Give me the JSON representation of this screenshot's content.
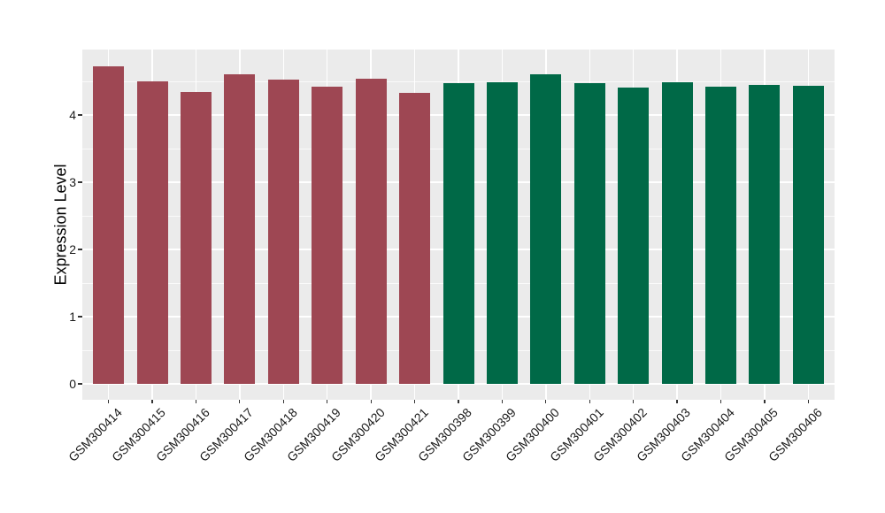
{
  "chart_data": {
    "type": "bar",
    "title": "",
    "xlabel": "",
    "ylabel": "Expression Level",
    "ylim": [
      -0.24,
      4.95
    ],
    "yticks": [
      0,
      1,
      2,
      3,
      4
    ],
    "minor_yticks": [
      0.5,
      1.5,
      2.5,
      3.5,
      4.5
    ],
    "grid": "on",
    "legend_position": "none",
    "categories": [
      "GSM300414",
      "GSM300415",
      "GSM300416",
      "GSM300417",
      "GSM300418",
      "GSM300419",
      "GSM300420",
      "GSM300421",
      "GSM300398",
      "GSM300399",
      "GSM300400",
      "GSM300401",
      "GSM300402",
      "GSM300403",
      "GSM300404",
      "GSM300405",
      "GSM300406"
    ],
    "values": [
      4.72,
      4.5,
      4.34,
      4.6,
      4.52,
      4.42,
      4.54,
      4.33,
      4.47,
      4.49,
      4.6,
      4.47,
      4.41,
      4.49,
      4.42,
      4.45,
      4.44
    ],
    "bar_group_index": [
      0,
      0,
      0,
      0,
      0,
      0,
      0,
      0,
      1,
      1,
      1,
      1,
      1,
      1,
      1,
      1,
      1
    ],
    "group_colors": [
      "#9E4753",
      "#006947"
    ]
  },
  "colors": {
    "figure_background": "#FFFFFF",
    "panel_background": "#EBEBEB",
    "gridline_major": "#FFFFFF",
    "gridline_minor": "#FFFFFF",
    "tick_mark": "#333333",
    "axis_text": "#1A1A1A"
  }
}
